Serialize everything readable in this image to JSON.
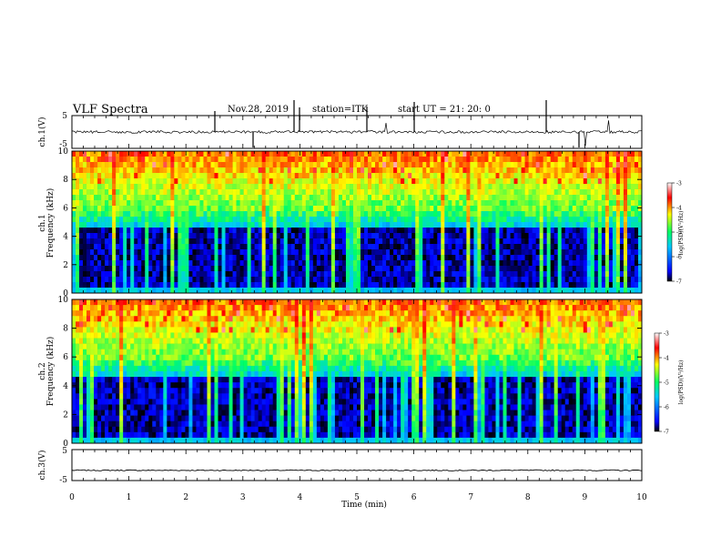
{
  "header": {
    "title": "VLF Spectra",
    "date": "Nov.28, 2019",
    "station": "station=ITK",
    "start_ut": "start UT =  21: 20: 0"
  },
  "chart_data": [
    {
      "type": "line",
      "panel": "ch1-waveform",
      "ylabel": "ch.1(V)",
      "ylim": [
        -5,
        5
      ],
      "yticks": [
        "5",
        "-5"
      ],
      "xlim": [
        0,
        10
      ],
      "description_values": {
        "baseline": 0,
        "spike_min": -5,
        "spike_max": 5
      },
      "series": [
        {
          "color": "#000000"
        }
      ]
    },
    {
      "type": "heatmap",
      "panel": "ch1-spectrogram",
      "ylabel": "ch.1\nFrequency (kHz)",
      "ylabel_lines": [
        "ch.1",
        "Frequency (kHz)"
      ],
      "ylim": [
        0,
        10
      ],
      "yticks": [
        "0",
        "2",
        "4",
        "6",
        "8",
        "10"
      ],
      "xlim": [
        0,
        10
      ],
      "colorbar": {
        "label": "log(PSD)(V²/Hz)",
        "range": [
          -7,
          -3
        ],
        "ticks": [
          "-3",
          "-4",
          "-5",
          "-6",
          "-7"
        ],
        "colors": [
          "#000000",
          "#0000ff",
          "#00c8ff",
          "#00ff64",
          "#ffff00",
          "#ff0000",
          "#ffffff"
        ]
      }
    },
    {
      "type": "heatmap",
      "panel": "ch2-spectrogram",
      "ylabel": "ch.2\nFrequency (kHz)",
      "ylabel_lines": [
        "ch.2",
        "Frequency (kHz)"
      ],
      "ylim": [
        0,
        10
      ],
      "yticks": [
        "0",
        "2",
        "4",
        "6",
        "8",
        "10"
      ],
      "xlim": [
        0,
        10
      ],
      "colorbar": {
        "label": "log(PSD)(V²/Hz)",
        "range": [
          -7,
          -3
        ],
        "ticks": [
          "-3",
          "-4",
          "-5",
          "-6",
          "-7"
        ],
        "colors": [
          "#000000",
          "#0000ff",
          "#00c8ff",
          "#00ff64",
          "#ffff00",
          "#ff0000",
          "#ffffff"
        ]
      }
    },
    {
      "type": "line",
      "panel": "ch3-waveform",
      "ylabel": "ch.3(V)",
      "ylim": [
        -5,
        5
      ],
      "yticks": [
        "5",
        "-5"
      ],
      "xlim": [
        0,
        10
      ],
      "xlabel": "Time (min)",
      "xticks": [
        "0",
        "1",
        "2",
        "3",
        "4",
        "5",
        "6",
        "7",
        "8",
        "9",
        "10"
      ],
      "series": [
        {
          "color": "#000000",
          "baseline": -1.7
        }
      ]
    }
  ]
}
